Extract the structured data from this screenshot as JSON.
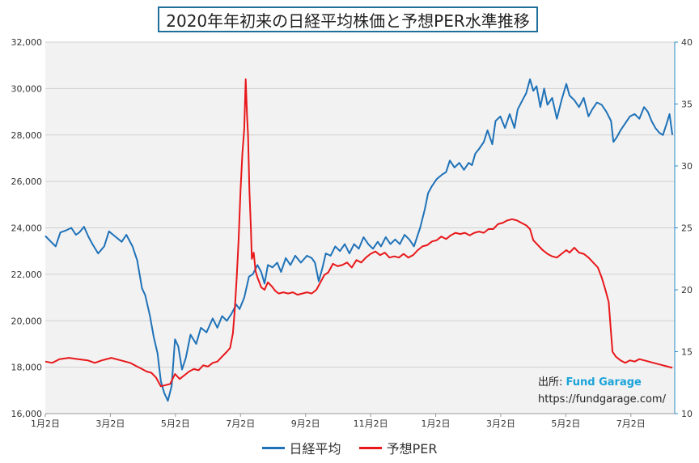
{
  "chart_data": {
    "type": "line",
    "title": "2020年年初来の日経平均株価と予想PER水準推移",
    "x_ticks": [
      "1月2日",
      "3月2日",
      "5月2日",
      "7月2日",
      "9月2日",
      "11月2日",
      "1月2日",
      "3月2日",
      "5月2日",
      "7月2日"
    ],
    "ylim_left": [
      16000,
      32000
    ],
    "yticks_left": [
      "16,000",
      "18,000",
      "20,000",
      "22,000",
      "24,000",
      "26,000",
      "28,000",
      "30,000",
      "32,000"
    ],
    "ylim_right": [
      10,
      40
    ],
    "yticks_right": [
      "10",
      "15",
      "20",
      "25",
      "30",
      "35",
      "40"
    ],
    "grid": "horizontal",
    "legend": "bottom",
    "series": [
      {
        "name": "日経平均",
        "axis": "left",
        "color": "#1f72b8",
        "points": [
          [
            0,
            23650
          ],
          [
            0.12,
            23400
          ],
          [
            0.22,
            23200
          ],
          [
            0.32,
            23800
          ],
          [
            0.45,
            23900
          ],
          [
            0.55,
            24000
          ],
          [
            0.65,
            23700
          ],
          [
            0.72,
            23800
          ],
          [
            0.82,
            24050
          ],
          [
            0.92,
            23600
          ],
          [
            1.0,
            23300
          ],
          [
            1.12,
            22900
          ],
          [
            1.25,
            23200
          ],
          [
            1.35,
            23850
          ],
          [
            1.5,
            23600
          ],
          [
            1.62,
            23400
          ],
          [
            1.72,
            23700
          ],
          [
            1.85,
            23200
          ],
          [
            1.95,
            22600
          ],
          [
            2.05,
            21400
          ],
          [
            2.12,
            21100
          ],
          [
            2.22,
            20200
          ],
          [
            2.3,
            19300
          ],
          [
            2.38,
            18600
          ],
          [
            2.45,
            17400
          ],
          [
            2.52,
            16900
          ],
          [
            2.6,
            16550
          ],
          [
            2.68,
            17200
          ],
          [
            2.75,
            19200
          ],
          [
            2.82,
            18900
          ],
          [
            2.9,
            17900
          ],
          [
            2.98,
            18400
          ],
          [
            3.08,
            19400
          ],
          [
            3.2,
            19000
          ],
          [
            3.3,
            19700
          ],
          [
            3.42,
            19500
          ],
          [
            3.55,
            20100
          ],
          [
            3.65,
            19700
          ],
          [
            3.75,
            20200
          ],
          [
            3.85,
            20000
          ],
          [
            3.95,
            20300
          ],
          [
            4.05,
            20700
          ],
          [
            4.12,
            20500
          ],
          [
            4.22,
            21000
          ],
          [
            4.32,
            21900
          ],
          [
            4.4,
            22000
          ],
          [
            4.5,
            22400
          ],
          [
            4.58,
            22100
          ],
          [
            4.65,
            21600
          ],
          [
            4.72,
            22400
          ],
          [
            4.82,
            22300
          ],
          [
            4.92,
            22500
          ],
          [
            5.0,
            22100
          ],
          [
            5.1,
            22700
          ],
          [
            5.2,
            22400
          ],
          [
            5.3,
            22800
          ],
          [
            5.42,
            22500
          ],
          [
            5.55,
            22800
          ],
          [
            5.65,
            22700
          ],
          [
            5.72,
            22500
          ],
          [
            5.8,
            21700
          ],
          [
            5.88,
            22300
          ],
          [
            5.95,
            22900
          ],
          [
            6.05,
            22800
          ],
          [
            6.15,
            23200
          ],
          [
            6.25,
            23000
          ],
          [
            6.35,
            23300
          ],
          [
            6.45,
            22900
          ],
          [
            6.55,
            23300
          ],
          [
            6.65,
            23100
          ],
          [
            6.75,
            23600
          ],
          [
            6.85,
            23300
          ],
          [
            6.95,
            23100
          ],
          [
            7.05,
            23400
          ],
          [
            7.12,
            23200
          ],
          [
            7.22,
            23600
          ],
          [
            7.32,
            23300
          ],
          [
            7.42,
            23500
          ],
          [
            7.52,
            23300
          ],
          [
            7.62,
            23700
          ],
          [
            7.72,
            23500
          ],
          [
            7.82,
            23200
          ],
          [
            7.95,
            24000
          ],
          [
            8.05,
            24800
          ],
          [
            8.12,
            25500
          ],
          [
            8.2,
            25800
          ],
          [
            8.3,
            26100
          ],
          [
            8.42,
            26300
          ],
          [
            8.5,
            26400
          ],
          [
            8.58,
            26900
          ],
          [
            8.68,
            26600
          ],
          [
            8.78,
            26800
          ],
          [
            8.88,
            26500
          ],
          [
            8.98,
            26800
          ],
          [
            9.05,
            26700
          ],
          [
            9.12,
            27200
          ],
          [
            9.2,
            27400
          ],
          [
            9.3,
            27700
          ],
          [
            9.38,
            28200
          ],
          [
            9.48,
            27600
          ],
          [
            9.55,
            28600
          ],
          [
            9.65,
            28800
          ],
          [
            9.75,
            28300
          ],
          [
            9.85,
            28900
          ],
          [
            9.95,
            28300
          ],
          [
            10.02,
            29100
          ],
          [
            10.12,
            29500
          ],
          [
            10.2,
            29800
          ],
          [
            10.28,
            30400
          ],
          [
            10.35,
            29900
          ],
          [
            10.42,
            30100
          ],
          [
            10.5,
            29200
          ],
          [
            10.58,
            30000
          ],
          [
            10.65,
            29300
          ],
          [
            10.75,
            29600
          ],
          [
            10.85,
            28700
          ],
          [
            10.95,
            29500
          ],
          [
            11.05,
            30200
          ],
          [
            11.12,
            29700
          ],
          [
            11.22,
            29500
          ],
          [
            11.32,
            29200
          ],
          [
            11.42,
            29600
          ],
          [
            11.52,
            28800
          ],
          [
            11.6,
            29100
          ],
          [
            11.7,
            29400
          ],
          [
            11.8,
            29300
          ],
          [
            11.9,
            29000
          ],
          [
            12.0,
            28600
          ],
          [
            12.05,
            27700
          ],
          [
            12.12,
            27900
          ],
          [
            12.2,
            28200
          ],
          [
            12.3,
            28500
          ],
          [
            12.4,
            28800
          ],
          [
            12.5,
            28900
          ],
          [
            12.6,
            28700
          ],
          [
            12.7,
            29200
          ],
          [
            12.78,
            29000
          ],
          [
            12.86,
            28600
          ],
          [
            12.94,
            28300
          ],
          [
            13.02,
            28100
          ],
          [
            13.1,
            28000
          ],
          [
            13.18,
            28500
          ],
          [
            13.24,
            28900
          ],
          [
            13.3,
            28000
          ]
        ]
      },
      {
        "name": "予想PER",
        "axis": "right",
        "color": "#e8171a",
        "points": [
          [
            0,
            14.2
          ],
          [
            0.15,
            14.1
          ],
          [
            0.3,
            14.4
          ],
          [
            0.5,
            14.5
          ],
          [
            0.7,
            14.4
          ],
          [
            0.9,
            14.3
          ],
          [
            1.05,
            14.1
          ],
          [
            1.2,
            14.3
          ],
          [
            1.4,
            14.5
          ],
          [
            1.6,
            14.3
          ],
          [
            1.8,
            14.1
          ],
          [
            1.95,
            13.8
          ],
          [
            2.05,
            13.6
          ],
          [
            2.15,
            13.4
          ],
          [
            2.25,
            13.3
          ],
          [
            2.35,
            12.9
          ],
          [
            2.45,
            12.2
          ],
          [
            2.55,
            12.3
          ],
          [
            2.65,
            12.4
          ],
          [
            2.75,
            13.2
          ],
          [
            2.85,
            12.8
          ],
          [
            2.95,
            13.1
          ],
          [
            3.05,
            13.4
          ],
          [
            3.15,
            13.6
          ],
          [
            3.25,
            13.5
          ],
          [
            3.35,
            13.9
          ],
          [
            3.45,
            13.8
          ],
          [
            3.55,
            14.1
          ],
          [
            3.65,
            14.2
          ],
          [
            3.75,
            14.6
          ],
          [
            3.85,
            15.0
          ],
          [
            3.92,
            15.3
          ],
          [
            3.98,
            16.5
          ],
          [
            4.02,
            18.5
          ],
          [
            4.06,
            21.0
          ],
          [
            4.1,
            24.0
          ],
          [
            4.14,
            28.0
          ],
          [
            4.18,
            31.0
          ],
          [
            4.22,
            33.0
          ],
          [
            4.25,
            37.0
          ],
          [
            4.28,
            34.0
          ],
          [
            4.3,
            32.5
          ],
          [
            4.33,
            28.0
          ],
          [
            4.36,
            25.0
          ],
          [
            4.38,
            22.5
          ],
          [
            4.42,
            23.0
          ],
          [
            4.46,
            21.5
          ],
          [
            4.5,
            21.0
          ],
          [
            4.58,
            20.2
          ],
          [
            4.65,
            20.0
          ],
          [
            4.72,
            20.6
          ],
          [
            4.8,
            20.3
          ],
          [
            4.88,
            19.9
          ],
          [
            4.95,
            19.7
          ],
          [
            5.05,
            19.8
          ],
          [
            5.15,
            19.7
          ],
          [
            5.25,
            19.8
          ],
          [
            5.35,
            19.6
          ],
          [
            5.45,
            19.7
          ],
          [
            5.55,
            19.8
          ],
          [
            5.65,
            19.7
          ],
          [
            5.75,
            20.0
          ],
          [
            5.85,
            20.7
          ],
          [
            5.92,
            21.2
          ],
          [
            6.0,
            21.4
          ],
          [
            6.1,
            22.1
          ],
          [
            6.2,
            21.9
          ],
          [
            6.3,
            22.0
          ],
          [
            6.4,
            22.2
          ],
          [
            6.5,
            21.8
          ],
          [
            6.6,
            22.4
          ],
          [
            6.7,
            22.2
          ],
          [
            6.8,
            22.6
          ],
          [
            6.9,
            22.9
          ],
          [
            7.0,
            23.1
          ],
          [
            7.1,
            22.8
          ],
          [
            7.2,
            23.0
          ],
          [
            7.3,
            22.6
          ],
          [
            7.4,
            22.7
          ],
          [
            7.5,
            22.6
          ],
          [
            7.6,
            22.9
          ],
          [
            7.7,
            22.6
          ],
          [
            7.8,
            22.8
          ],
          [
            7.9,
            23.2
          ],
          [
            8.0,
            23.5
          ],
          [
            8.1,
            23.6
          ],
          [
            8.2,
            23.9
          ],
          [
            8.3,
            24.0
          ],
          [
            8.4,
            24.3
          ],
          [
            8.5,
            24.1
          ],
          [
            8.6,
            24.4
          ],
          [
            8.7,
            24.6
          ],
          [
            8.8,
            24.5
          ],
          [
            8.9,
            24.6
          ],
          [
            9.0,
            24.4
          ],
          [
            9.1,
            24.6
          ],
          [
            9.2,
            24.7
          ],
          [
            9.3,
            24.6
          ],
          [
            9.4,
            24.9
          ],
          [
            9.5,
            24.9
          ],
          [
            9.6,
            25.3
          ],
          [
            9.7,
            25.4
          ],
          [
            9.8,
            25.6
          ],
          [
            9.9,
            25.7
          ],
          [
            10.0,
            25.6
          ],
          [
            10.1,
            25.4
          ],
          [
            10.2,
            25.2
          ],
          [
            10.28,
            24.9
          ],
          [
            10.35,
            24.0
          ],
          [
            10.45,
            23.6
          ],
          [
            10.55,
            23.2
          ],
          [
            10.65,
            22.9
          ],
          [
            10.75,
            22.7
          ],
          [
            10.85,
            22.6
          ],
          [
            10.95,
            22.9
          ],
          [
            11.05,
            23.2
          ],
          [
            11.12,
            23.0
          ],
          [
            11.22,
            23.4
          ],
          [
            11.32,
            23.0
          ],
          [
            11.42,
            22.9
          ],
          [
            11.52,
            22.6
          ],
          [
            11.62,
            22.2
          ],
          [
            11.72,
            21.8
          ],
          [
            11.8,
            21.0
          ],
          [
            11.88,
            20.0
          ],
          [
            11.95,
            19.0
          ],
          [
            12.0,
            16.5
          ],
          [
            12.03,
            15.0
          ],
          [
            12.1,
            14.6
          ],
          [
            12.2,
            14.3
          ],
          [
            12.3,
            14.1
          ],
          [
            12.4,
            14.3
          ],
          [
            12.5,
            14.2
          ],
          [
            12.6,
            14.4
          ],
          [
            12.7,
            14.3
          ],
          [
            12.8,
            14.2
          ],
          [
            12.9,
            14.1
          ],
          [
            13.0,
            14.0
          ],
          [
            13.1,
            13.9
          ],
          [
            13.2,
            13.8
          ],
          [
            13.3,
            13.7
          ]
        ]
      }
    ]
  },
  "source": {
    "label": "出所:",
    "brand": "Fund Garage",
    "url": "https://fundgarage.com/"
  }
}
